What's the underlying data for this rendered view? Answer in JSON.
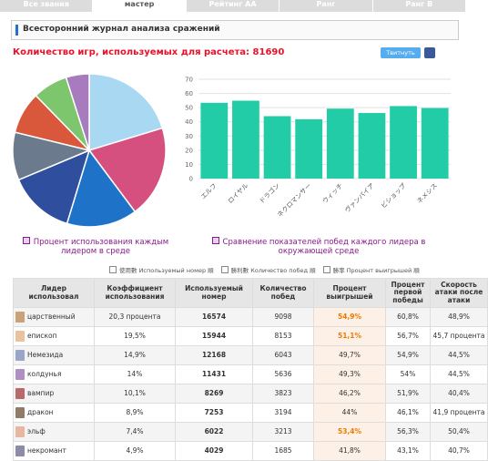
{
  "tabs": [
    "Все звания",
    "мастер",
    "Рейтинг AA",
    "Ранг",
    "Ранг B"
  ],
  "header": {
    "title": "Всесторонний журнал анализа сражений"
  },
  "games": {
    "label": "Количество игр, используемых для расчета:",
    "count": 81690
  },
  "share": {
    "tweet": "Твитнуть"
  },
  "chart_data": [
    {
      "type": "pie",
      "caption": "Процент использования каждым лидером в среде",
      "values": [
        20.3,
        19.5,
        14.9,
        14,
        10.1,
        8.9,
        7.4,
        4.9
      ],
      "colors": [
        "#a9d8f2",
        "#d6507f",
        "#1e73c8",
        "#2f4f9e",
        "#6b7a8c",
        "#d9573a",
        "#7dc66e",
        "#a77bbd"
      ]
    },
    {
      "type": "bar",
      "caption": "Сравнение показателей побед каждого лидера в окружающей среде",
      "categories": [
        "エルフ",
        "ロイヤル",
        "ドラゴン",
        "ネクロマンサー",
        "ウィッチ",
        "ヴァンパイア",
        "ビショップ",
        "ネメシス"
      ],
      "values": [
        53.4,
        54.9,
        44,
        41.8,
        49.3,
        46.2,
        51.1,
        49.7
      ],
      "color": "#22cca6",
      "ylim": [
        0,
        70
      ],
      "yticks": [
        0,
        10,
        20,
        30,
        40,
        50,
        60,
        70
      ],
      "grid": true
    }
  ],
  "sort_options": [
    "使用數 Используемый номер 順",
    "勝利數 Количество побед 順",
    "勝率 Процент выигрышей 順"
  ],
  "table": {
    "headers": [
      "Лидер использовал",
      "Коэффициент использования",
      "Используемый номер",
      "Количество побед",
      "Процент выигрышей",
      "Процент первой победы",
      "Скорость атаки после атаки"
    ],
    "rows": [
      [
        "царственный",
        "20,3 процента",
        "16574",
        "9098",
        "54,9%",
        "60,8%",
        "48,9%"
      ],
      [
        "епископ",
        "19,5%",
        "15944",
        "8153",
        "51,1%",
        "56,7%",
        "45,7 процента"
      ],
      [
        "Немезида",
        "14,9%",
        "12168",
        "6043",
        "49,7%",
        "54,9%",
        "44,5%"
      ],
      [
        "колдунья",
        "14%",
        "11431",
        "5636",
        "49,3%",
        "54%",
        "44,5%"
      ],
      [
        "вампир",
        "10,1%",
        "8269",
        "3823",
        "46,2%",
        "51,9%",
        "40,4%"
      ],
      [
        "дракон",
        "8,9%",
        "7253",
        "3194",
        "44%",
        "46,1%",
        "41,9 процента"
      ],
      [
        "эльф",
        "7,4%",
        "6022",
        "3213",
        "53,4%",
        "56,3%",
        "50,4%"
      ],
      [
        "некромант",
        "4,9%",
        "4029",
        "1685",
        "41,8%",
        "43,1%",
        "40,7%"
      ]
    ]
  }
}
